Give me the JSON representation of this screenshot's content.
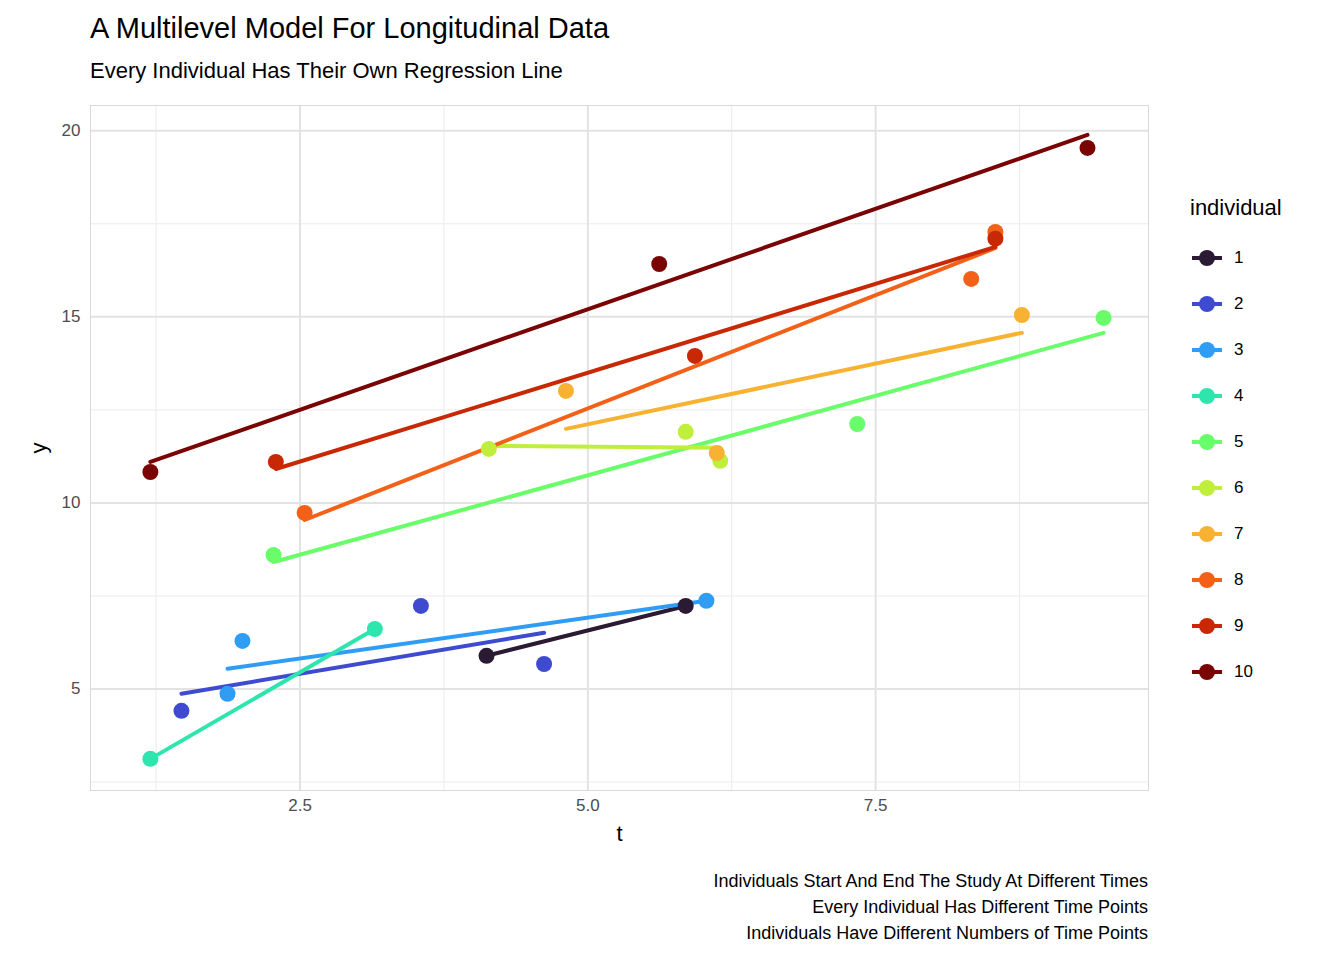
{
  "chart_data": {
    "type": "scatter",
    "title": "A Multilevel Model For Longitudinal Data",
    "subtitle": "Every Individual Has Their Own Regression Line",
    "caption": [
      "Individuals Start And End The Study At Different Times",
      "Every Individual Has Different Time Points",
      "Individuals Have Different Numbers of Time Points"
    ],
    "x_label": "t",
    "y_label": "y",
    "legend_title": "individual",
    "legend": "right",
    "grid": true,
    "marker": "circle",
    "xlim": [
      0.68,
      9.87
    ],
    "ylim": [
      2.27,
      20.68
    ],
    "xticks": [
      {
        "value": 2.5,
        "label": "2.5"
      },
      {
        "value": 5,
        "label": "5.0"
      },
      {
        "value": 7.5,
        "label": "7.5"
      }
    ],
    "yticks": [
      5,
      10,
      15,
      20
    ],
    "series": [
      {
        "name": "1",
        "color": "#2b1a33",
        "x": [
          4.12,
          5.85
        ],
        "values": [
          5.89,
          7.23
        ],
        "fit_x": [
          4.12,
          5.85
        ],
        "fit_y": [
          5.89,
          7.23
        ]
      },
      {
        "name": "2",
        "color": "#3e4bd0",
        "x": [
          1.47,
          3.55,
          4.62
        ],
        "values": [
          4.41,
          7.23,
          5.67
        ],
        "fit_x": [
          1.47,
          4.62
        ],
        "fit_y": [
          4.87,
          6.51
        ]
      },
      {
        "name": "3",
        "color": "#2f9df5",
        "x": [
          1.87,
          2.0,
          6.03
        ],
        "values": [
          4.87,
          6.29,
          7.37
        ],
        "fit_x": [
          1.87,
          6.03
        ],
        "fit_y": [
          5.54,
          7.37
        ]
      },
      {
        "name": "4",
        "color": "#2ee5ae",
        "x": [
          1.2,
          3.15
        ],
        "values": [
          3.12,
          6.61
        ],
        "fit_x": [
          1.2,
          3.15
        ],
        "fit_y": [
          3.12,
          6.61
        ]
      },
      {
        "name": "5",
        "color": "#6afd6a",
        "x": [
          2.27,
          7.34,
          9.48
        ],
        "values": [
          8.6,
          12.12,
          14.97
        ],
        "fit_x": [
          2.27,
          9.48
        ],
        "fit_y": [
          8.41,
          14.57
        ]
      },
      {
        "name": "6",
        "color": "#c0ee3d",
        "x": [
          4.14,
          5.85,
          6.15
        ],
        "values": [
          11.45,
          11.91,
          11.13
        ],
        "fit_x": [
          4.14,
          6.15
        ],
        "fit_y": [
          11.53,
          11.48
        ]
      },
      {
        "name": "7",
        "color": "#f8b232",
        "x": [
          4.81,
          6.12,
          8.77
        ],
        "values": [
          13.01,
          11.34,
          15.05
        ],
        "fit_x": [
          4.81,
          8.77
        ],
        "fit_y": [
          11.99,
          14.57
        ]
      },
      {
        "name": "8",
        "color": "#f26117",
        "x": [
          2.54,
          8.33,
          8.54
        ],
        "values": [
          9.73,
          16.02,
          17.28
        ],
        "fit_x": [
          2.54,
          8.54
        ],
        "fit_y": [
          9.54,
          16.85
        ]
      },
      {
        "name": "9",
        "color": "#c82803",
        "x": [
          2.29,
          5.93,
          8.54
        ],
        "values": [
          11.1,
          13.95,
          17.1
        ],
        "fit_x": [
          2.29,
          8.54
        ],
        "fit_y": [
          10.91,
          16.88
        ]
      },
      {
        "name": "10",
        "color": "#7a0403",
        "x": [
          1.2,
          5.62,
          9.34
        ],
        "values": [
          10.83,
          16.42,
          19.54
        ],
        "fit_x": [
          1.2,
          9.34
        ],
        "fit_y": [
          11.1,
          19.89
        ]
      }
    ]
  }
}
